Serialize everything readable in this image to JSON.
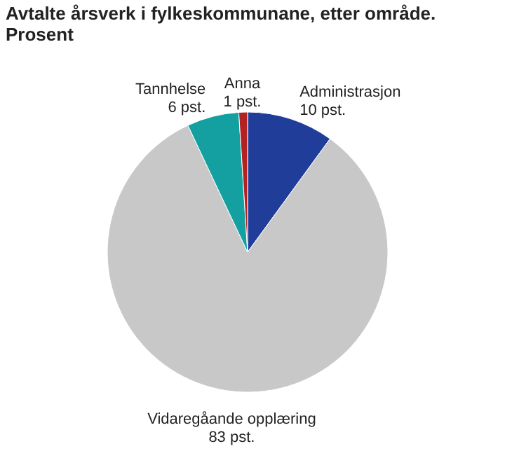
{
  "chart_data": {
    "type": "pie",
    "title": "Avtalte årsverk i fylkeskommunane, etter område. Prosent",
    "categories": [
      "Administrasjon",
      "Vidaregåande opplæring",
      "Tannhelse",
      "Anna"
    ],
    "values": [
      10,
      83,
      6,
      1
    ],
    "colors": [
      "#1f3d99",
      "#c8c8c8",
      "#14a0a0",
      "#b22222"
    ],
    "value_labels": [
      "10 pst.",
      "83 pst.",
      "6 pst.",
      "1 pst."
    ],
    "legend": false
  }
}
